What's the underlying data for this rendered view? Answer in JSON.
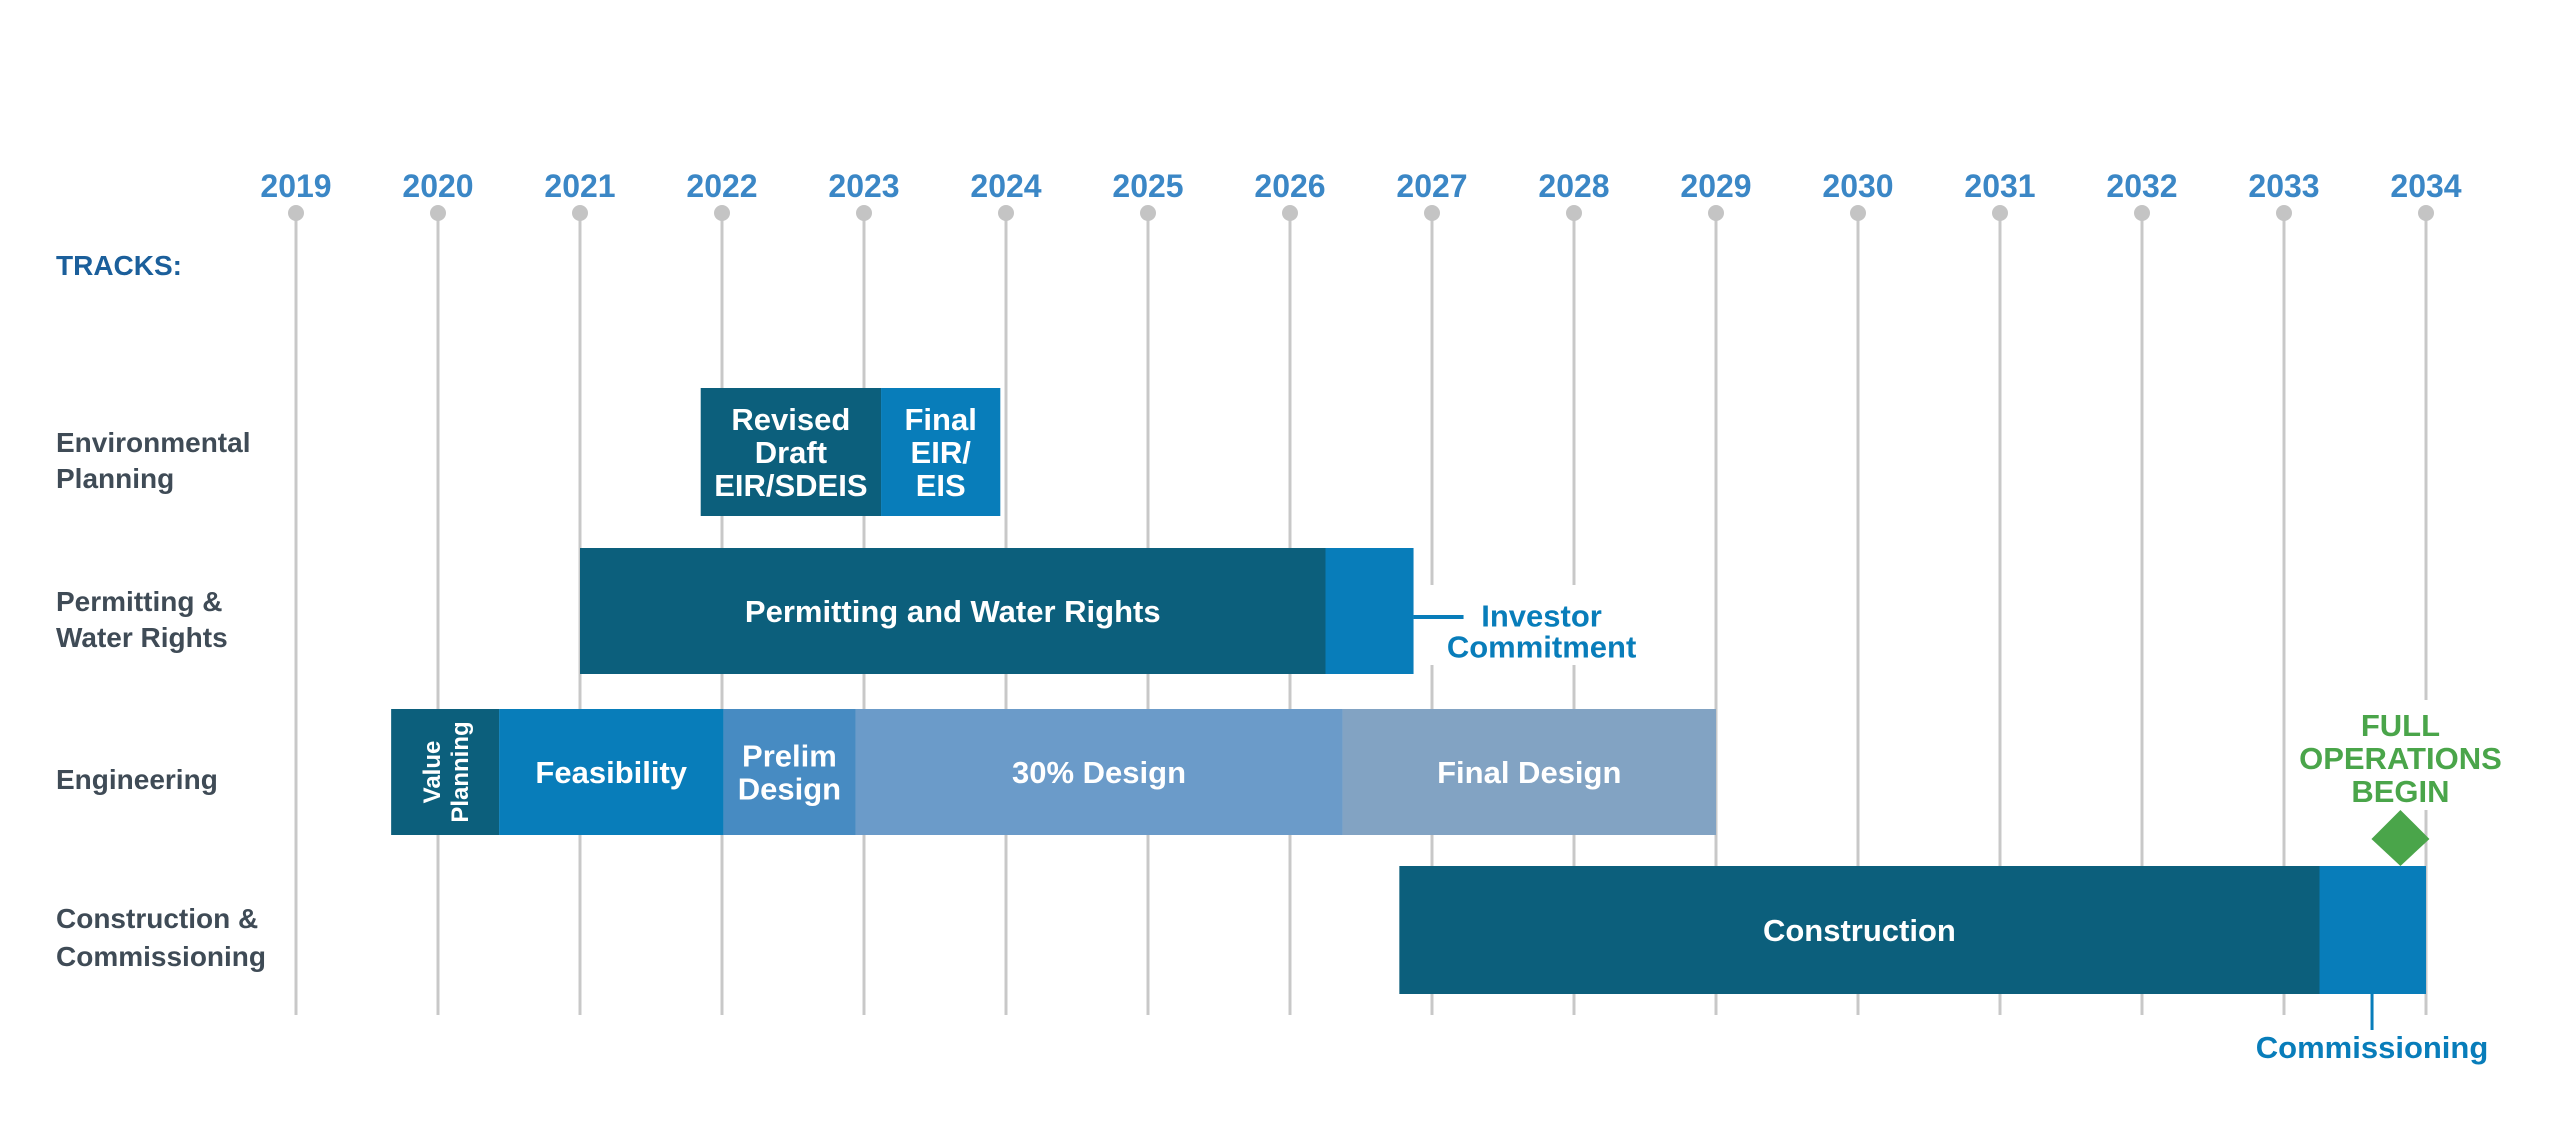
{
  "chart_data": {
    "type": "gantt",
    "title": "",
    "x_axis": {
      "ticks": [
        "2019",
        "2020",
        "2021",
        "2022",
        "2023",
        "2024",
        "2025",
        "2026",
        "2027",
        "2028",
        "2029",
        "2030",
        "2031",
        "2032",
        "2033",
        "2034"
      ],
      "range": [
        2019,
        2034
      ],
      "gridlines": true
    },
    "tracks_header": "TRACKS:",
    "tracks": [
      {
        "label": [
          "Environmental",
          "Planning"
        ]
      },
      {
        "label": [
          "Permitting &",
          "Water Rights"
        ]
      },
      {
        "label": [
          "Engineering"
        ]
      },
      {
        "label": [
          "Construction &",
          "Commissioning"
        ]
      }
    ],
    "bars": [
      {
        "track": 0,
        "start": 2021.85,
        "end": 2023.12,
        "label": [
          "Revised",
          "Draft",
          "EIR/SDEIS"
        ],
        "color": "#0c5f7c"
      },
      {
        "track": 0,
        "start": 2023.12,
        "end": 2023.96,
        "label": [
          "Final",
          "EIR/",
          "EIS"
        ],
        "color": "#087dba"
      },
      {
        "track": 1,
        "start": 2021.0,
        "end": 2026.25,
        "label": [
          "Permitting and Water Rights"
        ],
        "color": "#0c5f7c"
      },
      {
        "track": 1,
        "start": 2026.25,
        "end": 2026.87,
        "label": [],
        "color": "#087dba"
      },
      {
        "track": 2,
        "start": 2019.67,
        "end": 2020.43,
        "label": [
          "Value",
          "Planning"
        ],
        "color": "#0c5f7c",
        "vertical": true
      },
      {
        "track": 2,
        "start": 2020.43,
        "end": 2022.01,
        "label": [
          "Feasibility"
        ],
        "color": "#087dba"
      },
      {
        "track": 2,
        "start": 2022.01,
        "end": 2022.94,
        "label": [
          "Prelim",
          "Design"
        ],
        "color": "#478bc2"
      },
      {
        "track": 2,
        "start": 2022.94,
        "end": 2026.37,
        "label": [
          "30% Design"
        ],
        "color": "#6b9bc9"
      },
      {
        "track": 2,
        "start": 2026.37,
        "end": 2029.0,
        "label": [
          "Final Design"
        ],
        "color": "#82a3c3"
      },
      {
        "track": 3,
        "start": 2026.77,
        "end": 2033.25,
        "label": [
          "Construction"
        ],
        "color": "#0c5f7c"
      },
      {
        "track": 3,
        "start": 2033.25,
        "end": 2034.0,
        "label": [],
        "color": "#087dba"
      }
    ],
    "annotations": [
      {
        "name": "investor-commitment",
        "text": [
          "Investor",
          "Commitment"
        ],
        "at": 2026.87,
        "color": "#087dba"
      },
      {
        "name": "commissioning",
        "text": [
          "Commissioning"
        ],
        "at": 2033.62,
        "color": "#087dba"
      }
    ],
    "milestone": {
      "text": [
        "FULL",
        "OPERATIONS",
        "BEGIN"
      ],
      "at": 2033.82,
      "shape": "diamond",
      "color": "#4aa54a"
    },
    "colors": {
      "gridline": "#c8c8c8",
      "year_label": "#3b87c6",
      "track_label": "#3f4b56"
    }
  }
}
